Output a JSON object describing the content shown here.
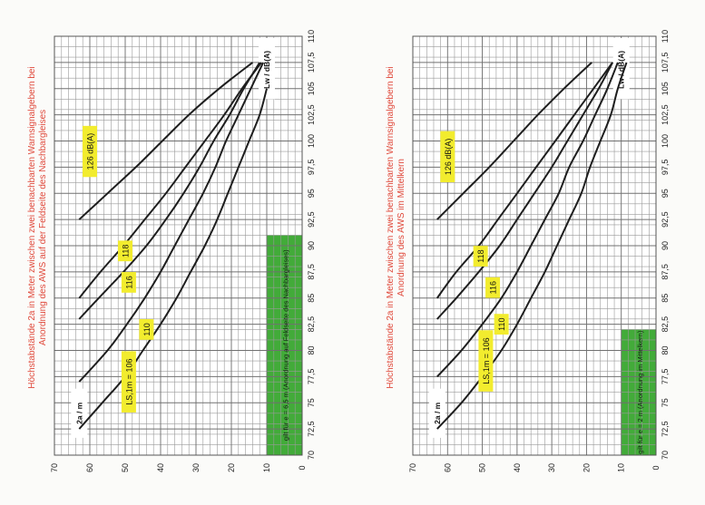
{
  "chart_data": [
    {
      "type": "line",
      "title": "Höchstabstände 2a in Meter zwischen zwei benachbarten Warnsignalgebern bei Anordnung des AWS auf der Feldseite des Nachbargleises",
      "xlabel": "Lw / dB(A)",
      "ylabel": "2a / m",
      "xlim": [
        70,
        110
      ],
      "ylim": [
        0,
        70
      ],
      "x_ticks": [
        "70",
        "72,5",
        "75",
        "77,5",
        "80",
        "82,5",
        "85",
        "87,5",
        "90",
        "92,5",
        "95",
        "97,5",
        "100",
        "102,5",
        "105",
        "107,5",
        "110"
      ],
      "y_ticks": [
        "0",
        "10",
        "20",
        "30",
        "40",
        "50",
        "60",
        "70"
      ],
      "grid": true,
      "note": "gilt für e = 6,5 m (Anordnung auf Feldseite des Nachbargleises)",
      "note_xrange": [
        70,
        91
      ],
      "series": [
        {
          "name": "LS,1m = 106",
          "x": [
            72.5,
            75,
            77.5,
            80,
            82.5,
            85,
            87.5,
            90,
            92.5,
            95,
            97.5,
            100,
            102.5,
            105
          ],
          "values": [
            63,
            56.5,
            50,
            45,
            40,
            35.5,
            31.5,
            27.5,
            24,
            21,
            18,
            15,
            12,
            10
          ],
          "label_pos": [
            77,
            49
          ]
        },
        {
          "name": "110",
          "x": [
            77,
            80,
            82.5,
            85,
            87.5,
            90,
            92.5,
            95,
            97.5,
            100,
            102.5,
            105,
            107.5
          ],
          "values": [
            63,
            55,
            49.5,
            44.5,
            40,
            36,
            32,
            28,
            24.5,
            21.5,
            18,
            14.5,
            11
          ],
          "label_pos": [
            82,
            44
          ]
        },
        {
          "name": "116",
          "x": [
            83,
            85,
            87.5,
            90,
            92.5,
            95,
            97.5,
            100,
            102.5,
            105,
            107.5
          ],
          "values": [
            63,
            57.5,
            50.5,
            44,
            38.5,
            33.5,
            29,
            25,
            20.5,
            16.5,
            12
          ],
          "label_pos": [
            86.5,
            49
          ]
        },
        {
          "name": "118",
          "x": [
            85,
            87.5,
            90,
            92.5,
            95,
            97.5,
            100,
            102.5,
            105,
            107.5
          ],
          "values": [
            63,
            57,
            50.5,
            44.5,
            38.5,
            33,
            27.5,
            22,
            17,
            11.5
          ],
          "label_pos": [
            89.5,
            50
          ]
        },
        {
          "name": "126 dB(A)",
          "x": [
            92.5,
            95,
            97.5,
            100,
            102.5,
            105,
            107.5
          ],
          "values": [
            63,
            55,
            47,
            39.5,
            32,
            23.5,
            14
          ],
          "label_pos": [
            99,
            60
          ]
        }
      ]
    },
    {
      "type": "line",
      "title": "Höchstabstände 2a in Meter zwischen zwei benachbarten Warnsignalgebern bei Anordnung des AWS im Mittelkern",
      "xlabel": "Lw / dB(A)",
      "ylabel": "2a / m",
      "xlim": [
        70,
        110
      ],
      "ylim": [
        0,
        70
      ],
      "x_ticks": [
        "70",
        "72,5",
        "75",
        "77,5",
        "80",
        "82,5",
        "85",
        "87,5",
        "90",
        "92,5",
        "95",
        "97,5",
        "100",
        "102,5",
        "105",
        "107,5",
        "110"
      ],
      "y_ticks": [
        "0",
        "10",
        "20",
        "30",
        "40",
        "50",
        "60",
        "70"
      ],
      "grid": true,
      "note": "gilt für e = 2 m (Anordnung im Mittelkern)",
      "note_xrange": [
        70,
        82
      ],
      "series": [
        {
          "name": "LS,1m = 106",
          "x": [
            72.5,
            75,
            77.5,
            80,
            82.5,
            85,
            87.5,
            90,
            92.5,
            95,
            97.5,
            100,
            102.5,
            105,
            107.5
          ],
          "values": [
            63,
            56,
            50,
            44.5,
            40,
            36,
            32,
            28.5,
            25,
            21.5,
            19,
            16,
            13,
            11,
            8.5
          ],
          "label_pos": [
            79,
            49
          ]
        },
        {
          "name": "110",
          "x": [
            77.5,
            80,
            82.5,
            85,
            87.5,
            90,
            92.5,
            95,
            97.5,
            100,
            102.5,
            105,
            107.5
          ],
          "values": [
            63,
            56,
            50,
            44.5,
            40,
            36,
            32,
            28,
            25,
            21,
            17.5,
            14,
            11
          ],
          "label_pos": [
            82.5,
            44.5
          ]
        },
        {
          "name": "116",
          "x": [
            83,
            85,
            87.5,
            90,
            92.5,
            95,
            97.5,
            100,
            102.5,
            105,
            107.5
          ],
          "values": [
            63,
            57.5,
            51,
            45,
            40,
            35,
            30,
            25.5,
            21,
            16.5,
            12.5
          ],
          "label_pos": [
            86,
            47
          ]
        },
        {
          "name": "118",
          "x": [
            85,
            87.5,
            90,
            92.5,
            95,
            97.5,
            100,
            102.5,
            105,
            107.5
          ],
          "values": [
            63,
            57.5,
            51,
            45.5,
            40,
            34.5,
            29,
            23.5,
            18,
            12.5
          ],
          "label_pos": [
            89,
            50.5
          ]
        },
        {
          "name": "126 dB(A)",
          "x": [
            92.5,
            95,
            97.5,
            100,
            102.5,
            105,
            107.5
          ],
          "values": [
            63,
            55.5,
            48,
            41,
            34,
            26.5,
            18.5
          ],
          "label_pos": [
            98.5,
            60
          ]
        }
      ]
    }
  ],
  "colors": {
    "title": "#e04a3c",
    "grid": "#9a9a9a",
    "curve": "#1e1e1e",
    "label_bg": "#f2ec2e",
    "note_bg": "#42ab39"
  }
}
